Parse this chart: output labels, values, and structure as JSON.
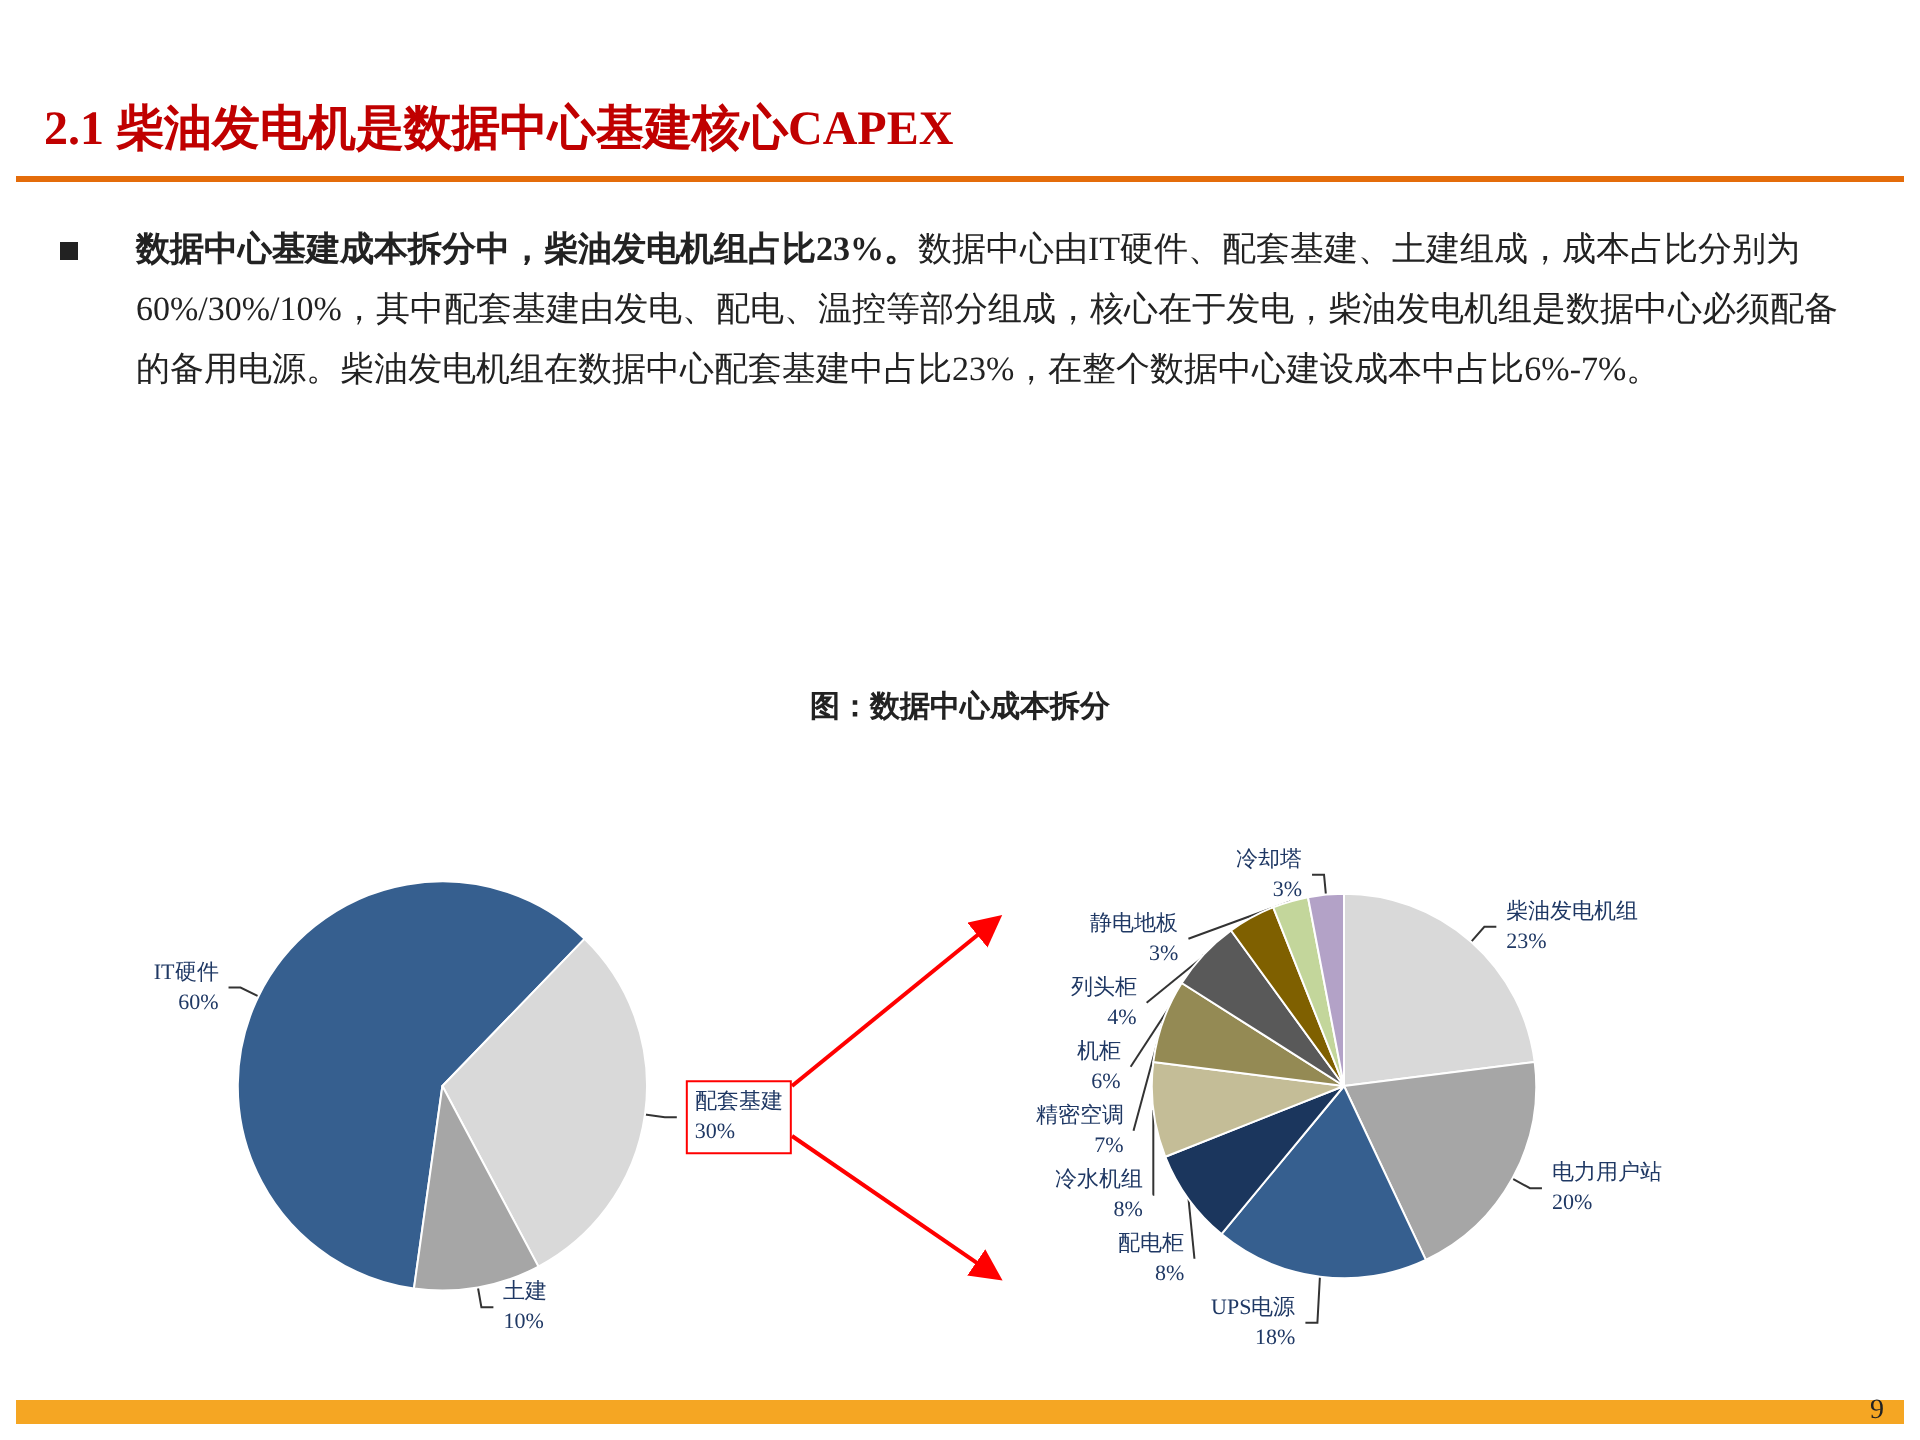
{
  "chart_data": [
    {
      "type": "pie",
      "title": "图：数据中心成本拆分",
      "annotations": [
        "2.1 柴油发电机是数据中心基建核心CAPEX",
        "数据中心基建成本拆分中，柴油发电机组占比23%。",
        "数据中心由IT硬件、配套基建、土建组成，成本占比分别为60%/30%/10%，其中配套基建由发电、配电、温控等部分组成，核心在于发电，柴油发电机组是数据中心必须配备的备用电源。柴油发电机组在数据中心配套基建中占比23%，在整个数据中心建设成本中占比6%-7%。",
        "9"
      ],
      "categories": [
        "IT硬件",
        "配套基建",
        "土建"
      ],
      "values": [
        60,
        30,
        10
      ],
      "value_labels": [
        "60%",
        "30%",
        "10%"
      ],
      "colors": [
        "#365f8f",
        "#d9d9d9",
        "#a6a6a6"
      ]
    },
    {
      "type": "pie",
      "categories": [
        "柴油发电机组",
        "电力用户站",
        "UPS电源",
        "配电柜",
        "冷水机组",
        "精密空调",
        "机柜",
        "列头柜",
        "静电地板",
        "冷却塔"
      ],
      "values": [
        23,
        20,
        18,
        8,
        8,
        7,
        6,
        4,
        3,
        3
      ],
      "value_labels": [
        "23%",
        "20%",
        "18%",
        "8%",
        "8%",
        "7%",
        "6%",
        "4%",
        "3%",
        "3%"
      ],
      "colors": [
        "#d9d9d9",
        "#a6a6a6",
        "#365f8f",
        "#1b365d",
        "#c4bd97",
        "#948a54",
        "#595959",
        "#7f6000",
        "#c3d69b",
        "#b3a2c7"
      ]
    }
  ]
}
